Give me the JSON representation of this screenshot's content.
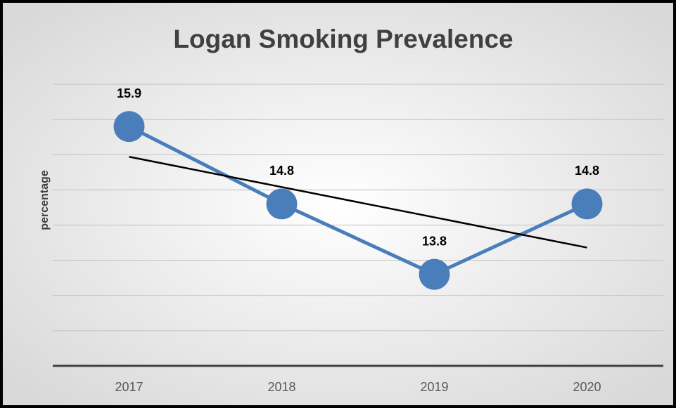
{
  "chart_data": {
    "type": "line",
    "title": "Logan Smoking Prevalence",
    "ylabel": "percentage",
    "categories": [
      "2017",
      "2018",
      "2019",
      "2020"
    ],
    "series": [
      {
        "name": "Logan",
        "color": "#4a7ebb",
        "values": [
          15.9,
          14.8,
          13.8,
          14.8
        ]
      }
    ],
    "ylim": [
      12.5,
      16.5
    ],
    "yticks": [
      12.5,
      13,
      13.5,
      14,
      14.5,
      15,
      15.5,
      16,
      16.5
    ],
    "ytick_labels": false,
    "grid": true,
    "data_labels": true,
    "trendline": {
      "type": "linear",
      "color": "#000000"
    }
  }
}
